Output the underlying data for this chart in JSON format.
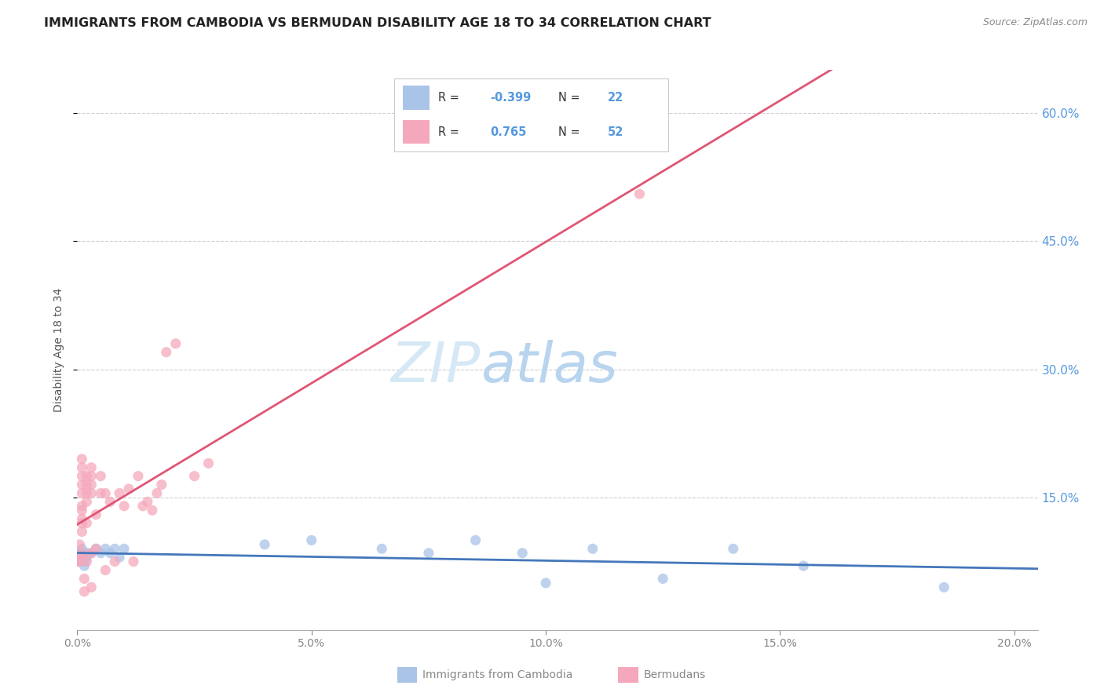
{
  "title": "IMMIGRANTS FROM CAMBODIA VS BERMUDAN DISABILITY AGE 18 TO 34 CORRELATION CHART",
  "source": "Source: ZipAtlas.com",
  "ylabel": "Disability Age 18 to 34",
  "watermark_zip": "ZIP",
  "watermark_atlas": "atlas",
  "legend_labels": [
    "Immigrants from Cambodia",
    "Bermudans"
  ],
  "cambodia_scatter": [
    [
      0.0005,
      0.075
    ],
    [
      0.0005,
      0.08
    ],
    [
      0.0005,
      0.085
    ],
    [
      0.001,
      0.075
    ],
    [
      0.001,
      0.08
    ],
    [
      0.001,
      0.085
    ],
    [
      0.001,
      0.09
    ],
    [
      0.0015,
      0.07
    ],
    [
      0.0015,
      0.075
    ],
    [
      0.0015,
      0.08
    ],
    [
      0.002,
      0.08
    ],
    [
      0.002,
      0.085
    ],
    [
      0.003,
      0.085
    ],
    [
      0.004,
      0.09
    ],
    [
      0.005,
      0.085
    ],
    [
      0.006,
      0.09
    ],
    [
      0.007,
      0.085
    ],
    [
      0.008,
      0.09
    ],
    [
      0.009,
      0.08
    ],
    [
      0.01,
      0.09
    ],
    [
      0.04,
      0.095
    ],
    [
      0.05,
      0.1
    ],
    [
      0.065,
      0.09
    ],
    [
      0.075,
      0.085
    ],
    [
      0.085,
      0.1
    ],
    [
      0.095,
      0.085
    ],
    [
      0.1,
      0.05
    ],
    [
      0.11,
      0.09
    ],
    [
      0.125,
      0.055
    ],
    [
      0.14,
      0.09
    ],
    [
      0.155,
      0.07
    ],
    [
      0.185,
      0.045
    ]
  ],
  "bermuda_scatter": [
    [
      0.0,
      0.075
    ],
    [
      0.0005,
      0.075
    ],
    [
      0.0005,
      0.095
    ],
    [
      0.001,
      0.08
    ],
    [
      0.001,
      0.085
    ],
    [
      0.001,
      0.11
    ],
    [
      0.001,
      0.12
    ],
    [
      0.001,
      0.125
    ],
    [
      0.001,
      0.135
    ],
    [
      0.001,
      0.14
    ],
    [
      0.001,
      0.155
    ],
    [
      0.001,
      0.165
    ],
    [
      0.001,
      0.175
    ],
    [
      0.001,
      0.185
    ],
    [
      0.001,
      0.195
    ],
    [
      0.0015,
      0.04
    ],
    [
      0.0015,
      0.055
    ],
    [
      0.002,
      0.075
    ],
    [
      0.002,
      0.12
    ],
    [
      0.002,
      0.145
    ],
    [
      0.002,
      0.155
    ],
    [
      0.002,
      0.165
    ],
    [
      0.002,
      0.175
    ],
    [
      0.003,
      0.045
    ],
    [
      0.003,
      0.085
    ],
    [
      0.003,
      0.155
    ],
    [
      0.003,
      0.165
    ],
    [
      0.003,
      0.175
    ],
    [
      0.003,
      0.185
    ],
    [
      0.004,
      0.09
    ],
    [
      0.004,
      0.13
    ],
    [
      0.005,
      0.155
    ],
    [
      0.005,
      0.175
    ],
    [
      0.006,
      0.065
    ],
    [
      0.006,
      0.155
    ],
    [
      0.007,
      0.145
    ],
    [
      0.008,
      0.075
    ],
    [
      0.009,
      0.155
    ],
    [
      0.01,
      0.14
    ],
    [
      0.011,
      0.16
    ],
    [
      0.012,
      0.075
    ],
    [
      0.013,
      0.175
    ],
    [
      0.014,
      0.14
    ],
    [
      0.015,
      0.145
    ],
    [
      0.016,
      0.135
    ],
    [
      0.017,
      0.155
    ],
    [
      0.018,
      0.165
    ],
    [
      0.019,
      0.32
    ],
    [
      0.021,
      0.33
    ],
    [
      0.025,
      0.175
    ],
    [
      0.028,
      0.19
    ],
    [
      0.12,
      0.505
    ]
  ],
  "xlim": [
    0.0,
    0.205
  ],
  "ylim": [
    -0.005,
    0.65
  ],
  "xticks": [
    0.0,
    0.05,
    0.1,
    0.15,
    0.2
  ],
  "yticks_right": [
    0.15,
    0.3,
    0.45,
    0.6
  ],
  "background_color": "#ffffff",
  "grid_color": "#d0d0d0",
  "cambodia_color": "#aac4e8",
  "cambodia_line_color": "#4477bb",
  "bermuda_color": "#f5a8bb",
  "bermuda_line_color": "#e05575",
  "right_axis_color": "#5599dd",
  "title_fontsize": 11.5,
  "source_fontsize": 9,
  "watermark_color": "#d5e8f5",
  "watermark_fontsize_zip": 52,
  "watermark_fontsize_atlas": 52
}
